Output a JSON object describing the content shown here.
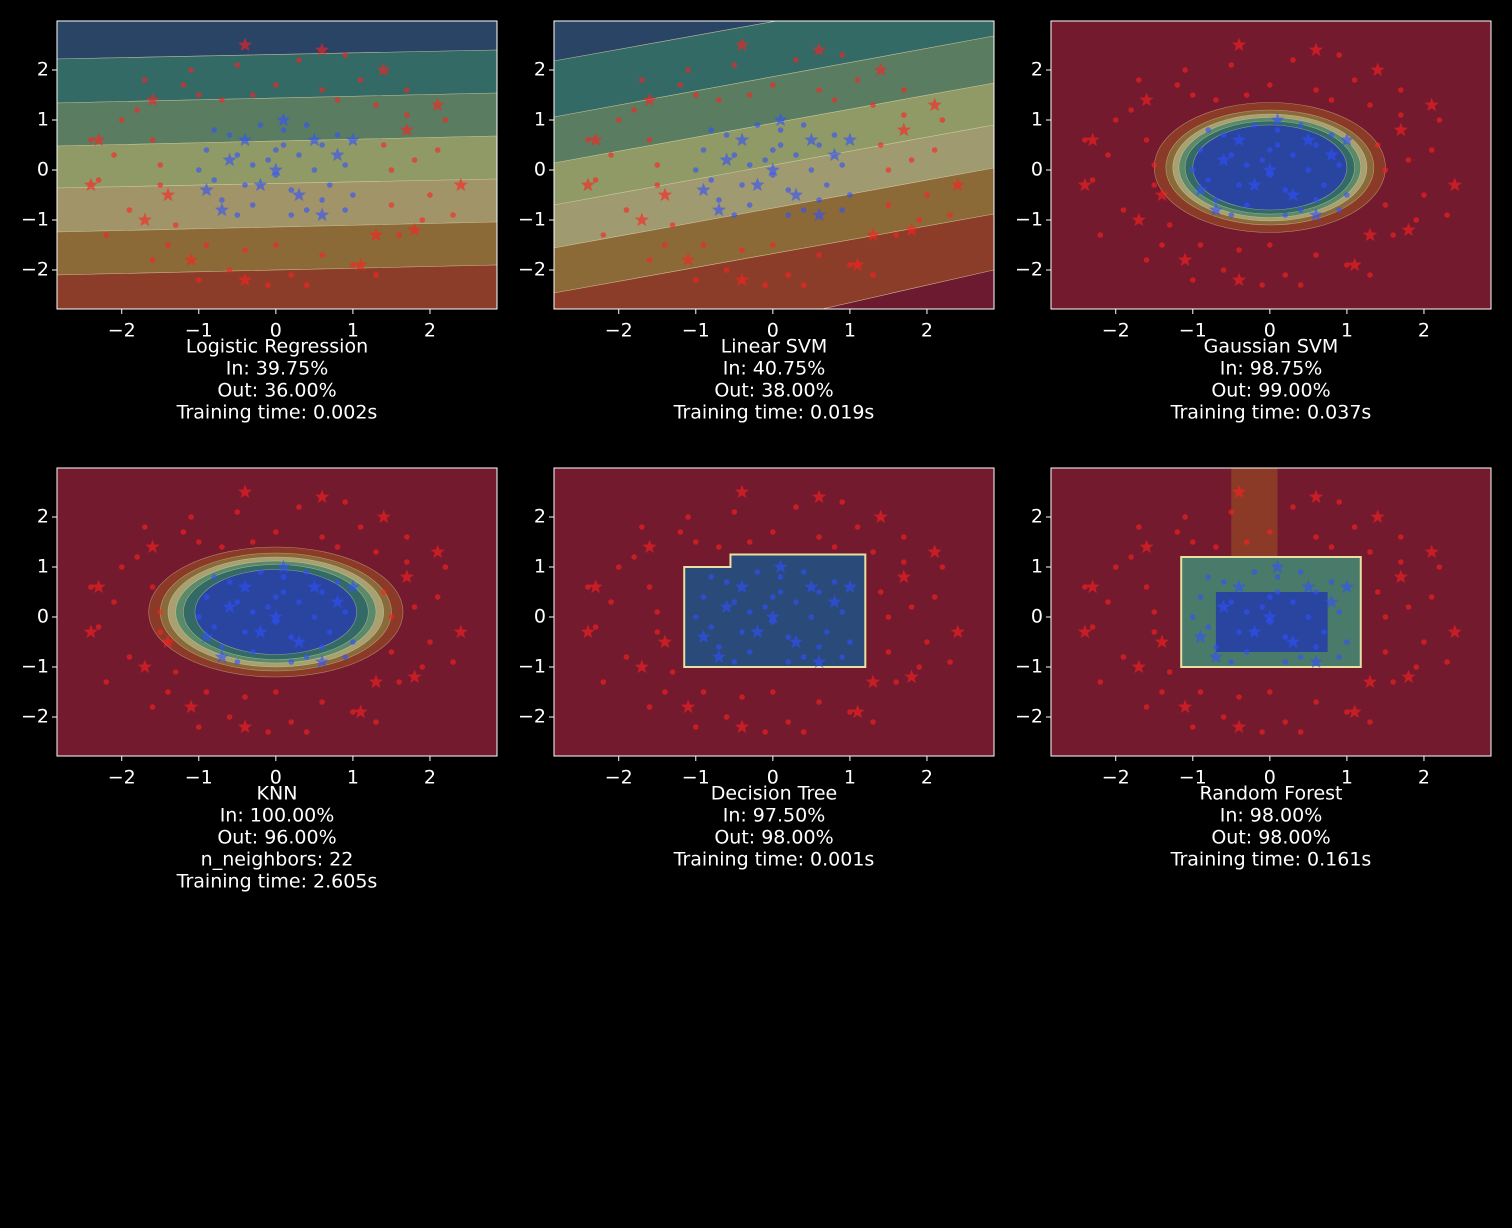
{
  "chart_data": [
    {
      "type": "scatter",
      "title": "Logistic Regression",
      "lines": [
        "In: 39.75%",
        "Out: 36.00%",
        "Training time: 0.002s"
      ],
      "xlim": [
        -2.84,
        2.87
      ],
      "ylim": [
        -2.78,
        2.98
      ],
      "xticks": [
        {
          "value": -2,
          "label": "−2"
        },
        {
          "value": -1,
          "label": "−1"
        },
        0,
        1,
        2
      ],
      "yticks": [
        {
          "value": -2,
          "label": "−2"
        },
        {
          "value": -1,
          "label": "−1"
        },
        0,
        1,
        2
      ]
    },
    {
      "type": "scatter",
      "title": "Linear SVM",
      "lines": [
        "In: 40.75%",
        "Out: 38.00%",
        "Training time: 0.019s"
      ],
      "xlim": [
        -2.84,
        2.87
      ],
      "ylim": [
        -2.78,
        2.98
      ],
      "xticks": [
        {
          "value": -2,
          "label": "−2"
        },
        {
          "value": -1,
          "label": "−1"
        },
        0,
        1,
        2
      ],
      "yticks": [
        {
          "value": -2,
          "label": "−2"
        },
        {
          "value": -1,
          "label": "−1"
        },
        0,
        1,
        2
      ]
    },
    {
      "type": "scatter",
      "title": "Gaussian SVM",
      "lines": [
        "In: 98.75%",
        "Out: 99.00%",
        "Training time: 0.037s"
      ],
      "xlim": [
        -2.84,
        2.87
      ],
      "ylim": [
        -2.78,
        2.98
      ],
      "xticks": [
        {
          "value": -2,
          "label": "−2"
        },
        {
          "value": -1,
          "label": "−1"
        },
        0,
        1,
        2
      ],
      "yticks": [
        {
          "value": -2,
          "label": "−2"
        },
        {
          "value": -1,
          "label": "−1"
        },
        0,
        1,
        2
      ]
    },
    {
      "type": "scatter",
      "title": "KNN",
      "lines": [
        "In: 100.00%",
        "Out: 96.00%",
        "n_neighbors: 22",
        "Training time: 2.605s"
      ],
      "xlim": [
        -2.84,
        2.87
      ],
      "ylim": [
        -2.78,
        2.98
      ],
      "xticks": [
        {
          "value": -2,
          "label": "−2"
        },
        {
          "value": -1,
          "label": "−1"
        },
        0,
        1,
        2
      ],
      "yticks": [
        {
          "value": -2,
          "label": "−2"
        },
        {
          "value": -1,
          "label": "−1"
        },
        0,
        1,
        2
      ]
    },
    {
      "type": "scatter",
      "title": "Decision Tree",
      "lines": [
        "In: 97.50%",
        "Out: 98.00%",
        "Training time: 0.001s"
      ],
      "xlim": [
        -2.84,
        2.87
      ],
      "ylim": [
        -2.78,
        2.98
      ],
      "xticks": [
        {
          "value": -2,
          "label": "−2"
        },
        {
          "value": -1,
          "label": "−1"
        },
        0,
        1,
        2
      ],
      "yticks": [
        {
          "value": -2,
          "label": "−2"
        },
        {
          "value": -1,
          "label": "−1"
        },
        0,
        1,
        2
      ]
    },
    {
      "type": "scatter",
      "title": "Random Forest",
      "lines": [
        "In: 98.00%",
        "Out: 98.00%",
        "Training time: 0.161s"
      ],
      "xlim": [
        -2.84,
        2.87
      ],
      "ylim": [
        -2.78,
        2.98
      ],
      "xticks": [
        {
          "value": -2,
          "label": "−2"
        },
        {
          "value": -1,
          "label": "−1"
        },
        0,
        1,
        2
      ],
      "yticks": [
        {
          "value": -2,
          "label": "−2"
        },
        {
          "value": -1,
          "label": "−1"
        },
        0,
        1,
        2
      ]
    }
  ],
  "points": [
    {
      "marker": "circle",
      "color": "#3050ff",
      "x": [
        -0.5,
        0.2,
        0.6,
        -0.8,
        0.1,
        -0.3,
        0.9,
        -0.1,
        0.4,
        -0.6,
        0.7,
        0.0,
        -0.9,
        0.3,
        -0.2,
        0.8,
        -0.4,
        0.5,
        -0.7,
        0.2,
        1.0,
        -1.0,
        0.1,
        -0.3,
        0.6,
        -0.5,
        0.4,
        0.9,
        -0.8,
        0.0
      ],
      "y": [
        0.3,
        -0.4,
        0.5,
        -0.2,
        0.8,
        -0.7,
        0.1,
        0.2,
        -0.8,
        0.7,
        -0.3,
        -0.1,
        0.4,
        0.3,
        0.9,
        0.7,
        -0.3,
        0.0,
        -0.6,
        -0.9,
        -0.5,
        0.0,
        0.5,
        0.1,
        -0.6,
        -0.9,
        0.9,
        -0.8,
        0.8,
        0.4
      ]
    },
    {
      "marker": "star",
      "color": "#3050ff",
      "x": [
        -0.2,
        0.5,
        -0.6,
        0.3,
        0.8,
        -0.9,
        0.1,
        -0.4,
        0.6,
        0.0,
        -0.7,
        1.0
      ],
      "y": [
        -0.3,
        0.6,
        0.2,
        -0.5,
        0.3,
        -0.4,
        1.0,
        0.6,
        -0.9,
        0.0,
        -0.8,
        0.6
      ]
    },
    {
      "marker": "circle",
      "color": "#ff2020",
      "x": [
        -2.1,
        -1.8,
        -1.2,
        -0.5,
        0.3,
        1.1,
        1.7,
        2.1,
        2.0,
        1.6,
        1.0,
        0.2,
        -0.6,
        -1.4,
        -1.9,
        -2.3,
        -1.6,
        -1.5,
        -1.0,
        0.0,
        1.3,
        1.8,
        1.5,
        0.6,
        -0.4,
        -1.3,
        -2.0,
        -1.1,
        0.9,
        2.2,
        2.3,
        1.3,
        -0.1,
        -1.0,
        -2.2,
        -1.7,
        0.6,
        1.7,
        1.9,
        0.4,
        -0.9,
        -1.6,
        -2.4,
        -0.3,
        1.4,
        1.5,
        -1.5,
        0.0,
        0.8,
        -0.7
      ],
      "y": [
        0.3,
        1.2,
        1.7,
        2.1,
        2.2,
        1.8,
        1.1,
        0.4,
        -0.5,
        -1.3,
        -1.9,
        -2.1,
        -2.0,
        -1.5,
        -0.8,
        -0.2,
        0.6,
        -0.3,
        1.5,
        1.7,
        1.3,
        0.2,
        -0.7,
        -1.7,
        -1.6,
        -1.1,
        1.0,
        2.0,
        2.3,
        1.0,
        -0.9,
        -2.1,
        -2.3,
        -2.2,
        -1.3,
        1.8,
        1.6,
        1.6,
        -1.0,
        -2.3,
        -1.5,
        -1.8,
        0.6,
        1.5,
        0.5,
        0.0,
        0.1,
        -1.5,
        1.4,
        1.4
      ]
    },
    {
      "marker": "star",
      "color": "#ff2020",
      "x": [
        -2.3,
        -0.4,
        0.6,
        1.4,
        2.1,
        2.4,
        1.8,
        1.1,
        -0.4,
        -1.1,
        -1.7,
        -2.4,
        -1.6,
        1.7,
        -1.4,
        1.3
      ],
      "y": [
        0.6,
        2.5,
        2.4,
        2.0,
        1.3,
        -0.3,
        -1.2,
        -1.9,
        -2.2,
        -1.8,
        -1.0,
        -0.3,
        1.4,
        0.8,
        -0.5,
        -1.3
      ]
    }
  ]
}
